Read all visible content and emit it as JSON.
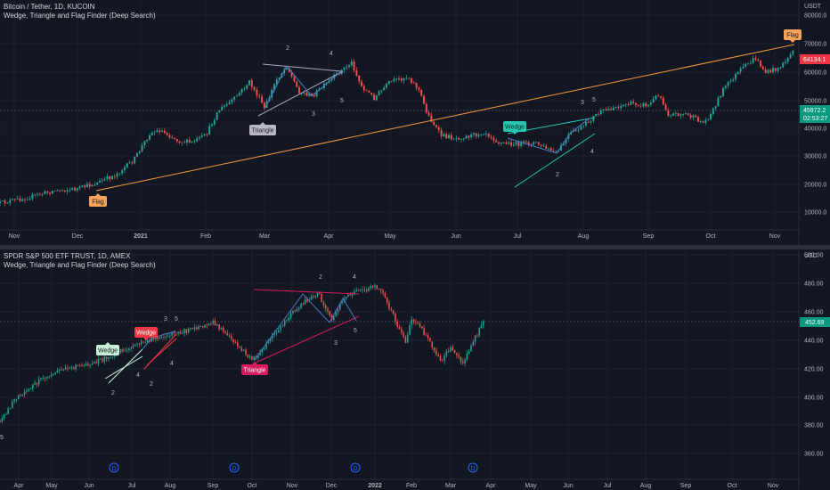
{
  "chart_data": [
    {
      "type": "candlestick",
      "symbol_line": "Bitcoin / Tether, 1D, KUCOIN",
      "indicator_line": "Wedge, Triangle and Flag Finder (Deep Search)",
      "currency": "USDT",
      "log_scale": true,
      "y_ticks": [
        "10000.0",
        "20000.0",
        "30000.0",
        "40000.0",
        "50000.0",
        "60000.0",
        "70000.0",
        "80000.0"
      ],
      "y_ticks_values": [
        10000,
        20000,
        30000,
        40000,
        50000,
        60000,
        70000,
        80000
      ],
      "x_ticks": [
        "Nov",
        "Dec",
        "2021",
        "Feb",
        "Mar",
        "Apr",
        "May",
        "Jun",
        "Jul",
        "Aug",
        "Sep",
        "Oct",
        "Nov"
      ],
      "price_label": "64134.1",
      "crosshair_label": "45972.2",
      "countdown_label": "02:53:27",
      "approx_closes": [
        {
          "x": "Nov",
          "y": 13500
        },
        {
          "x": "Dec",
          "y": 18500
        },
        {
          "x": "2021",
          "y": 29000
        },
        {
          "x": "Jan mid",
          "y": 37000
        },
        {
          "x": "Feb",
          "y": 33500
        },
        {
          "x": "Feb mid",
          "y": 48000
        },
        {
          "x": "Mar",
          "y": 45000
        },
        {
          "x": "Mar mid",
          "y": 58000
        },
        {
          "x": "Apr",
          "y": 58800
        },
        {
          "x": "Apr mid",
          "y": 63500
        },
        {
          "x": "May",
          "y": 56500
        },
        {
          "x": "May mid",
          "y": 46000
        },
        {
          "x": "Jun",
          "y": 36000
        },
        {
          "x": "Jul",
          "y": 34500
        },
        {
          "x": "Jul mid",
          "y": 31500
        },
        {
          "x": "Aug",
          "y": 40000
        },
        {
          "x": "Aug mid",
          "y": 46500
        },
        {
          "x": "Sep",
          "y": 48500
        },
        {
          "x": "Sep end",
          "y": 43500
        },
        {
          "x": "Oct",
          "y": 48000
        },
        {
          "x": "Oct mid",
          "y": 61500
        },
        {
          "x": "Nov",
          "y": 61000
        },
        {
          "x": "Nov mid",
          "y": 64134
        }
      ],
      "patterns": [
        {
          "label": "Flag",
          "color": "#f7a35c"
        },
        {
          "label": "Triangle",
          "color": "#b8b8c8"
        },
        {
          "label": "Wedge",
          "color": "#26c6b0"
        },
        {
          "label": "Flag",
          "color": "#f7a35c"
        }
      ],
      "pivot_numbers": [
        "2",
        "3",
        "4",
        "5",
        "2",
        "3",
        "4",
        "5"
      ]
    },
    {
      "type": "candlestick",
      "symbol_line": "SPDR S&P 500 ETF TRUST, 1D, AMEX",
      "indicator_line": "Wedge, Triangle and Flag Finder (Deep Search)",
      "currency": "USD",
      "y_ticks": [
        "360.00",
        "380.00",
        "400.00",
        "420.00",
        "440.00",
        "460.00",
        "480.00",
        "500.00"
      ],
      "y_ticks_values": [
        360,
        380,
        400,
        420,
        440,
        460,
        480,
        500
      ],
      "x_ticks": [
        "Apr",
        "May",
        "Jun",
        "Jul",
        "Aug",
        "Sep",
        "Oct",
        "Nov",
        "Dec",
        "2022",
        "Feb",
        "Mar",
        "Apr",
        "May",
        "Jun",
        "Jul",
        "Aug",
        "Sep",
        "Oct",
        "Nov"
      ],
      "price_label": "452.69",
      "dividend_marker": "D",
      "approx_closes": [
        {
          "x": "Apr",
          "y": 396
        },
        {
          "x": "May",
          "y": 415
        },
        {
          "x": "Jun",
          "y": 425
        },
        {
          "x": "Jul",
          "y": 434
        },
        {
          "x": "Aug",
          "y": 445
        },
        {
          "x": "Sep",
          "y": 452
        },
        {
          "x": "Oct",
          "y": 432
        },
        {
          "x": "Nov",
          "y": 463
        },
        {
          "x": "Dec",
          "y": 462
        },
        {
          "x": "2022",
          "y": 476
        },
        {
          "x": "Feb",
          "y": 445
        },
        {
          "x": "Mar",
          "y": 425
        },
        {
          "x": "Mar mid",
          "y": 418
        },
        {
          "x": "Apr",
          "y": 452
        }
      ],
      "patterns": [
        {
          "label": "Wedge",
          "color": "#c8f0d8"
        },
        {
          "label": "Wedge",
          "color": "#f23645"
        },
        {
          "label": "Triangle",
          "color": "#d81b60"
        }
      ],
      "pivot_numbers": [
        "2",
        "4",
        "2",
        "4",
        "3",
        "5",
        "2",
        "4",
        "3",
        "5",
        "5"
      ]
    }
  ],
  "icons": {
    "dividend": "D-circle-icon"
  }
}
